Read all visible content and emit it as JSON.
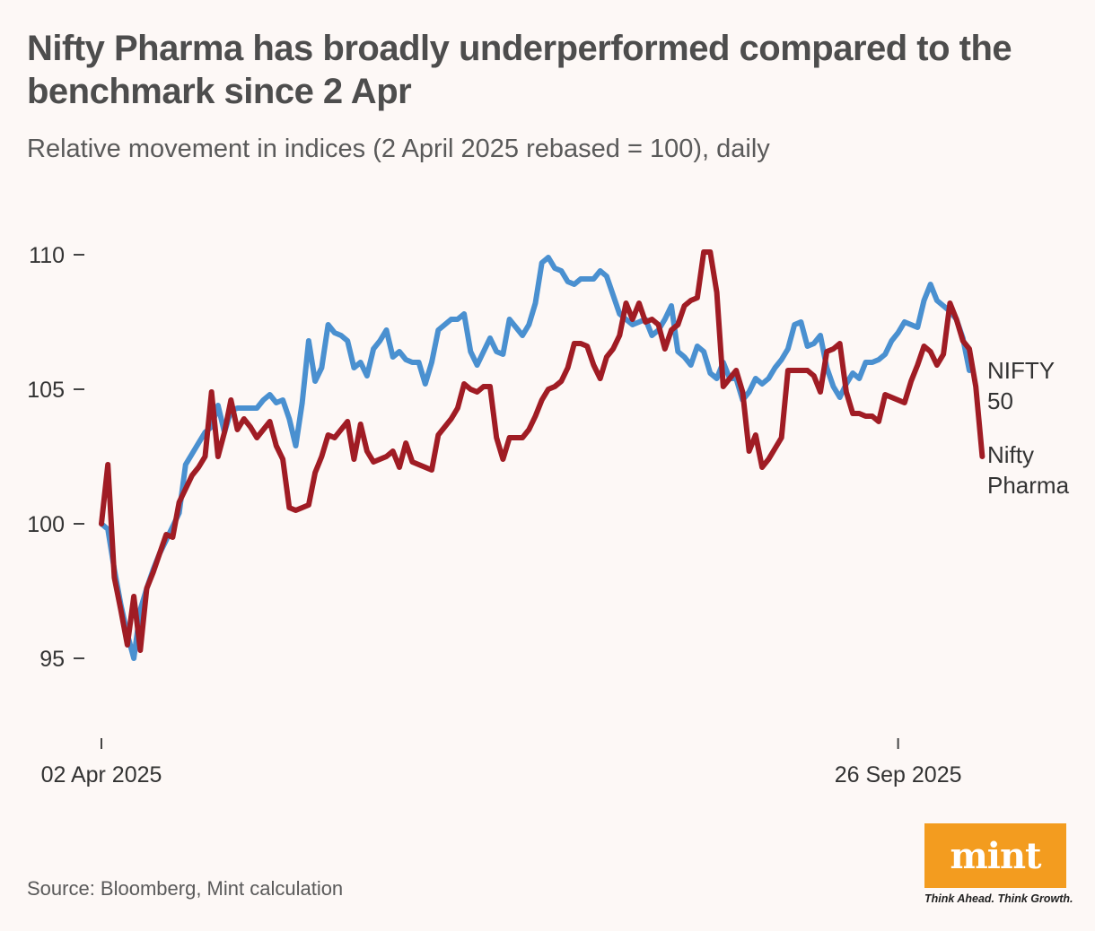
{
  "header": {
    "title": "Nifty Pharma has broadly underperformed compared to the benchmark since 2 Apr",
    "subtitle": "Relative movement in indices (2 April 2025 rebased = 100), daily"
  },
  "footer": {
    "source": "Source: Bloomberg, Mint calculation",
    "logo_text": "mint",
    "tagline": "Think Ahead. Think Growth."
  },
  "colors": {
    "background": "#fdf8f6",
    "nifty50": "#4a90d0",
    "pharma": "#a01c24",
    "logo": "#f39c1f"
  },
  "chart_data": {
    "type": "line",
    "title": "Nifty Pharma has broadly underperformed compared to the benchmark since 2 Apr",
    "subtitle": "Relative movement in indices (2 April 2025 rebased = 100), daily",
    "xlabel": "",
    "ylabel": "",
    "ylim": [
      92.5,
      111
    ],
    "yticks": [
      95,
      100,
      105,
      110
    ],
    "ytick_labels": [
      "95",
      "100",
      "105",
      "110"
    ],
    "xticks": [
      0,
      123
    ],
    "xtick_labels": [
      "02 Apr 2025",
      "26 Sep 2025"
    ],
    "grid": false,
    "legend": "direct labels at line ends (right)",
    "series": [
      {
        "name": "NIFTY 50",
        "label_lines": [
          "NIFTY",
          "50"
        ],
        "color": "#4a90d0",
        "values": [
          100,
          99.8,
          98.3,
          97,
          95.9,
          95,
          96.8,
          97.6,
          98.3,
          98.9,
          99.4,
          99.9,
          100.4,
          102.2,
          102.6,
          103,
          103.4,
          103.6,
          104.4,
          103.4,
          104.2,
          104.3,
          104.3,
          104.3,
          104.3,
          104.6,
          104.8,
          104.5,
          104.6,
          103.9,
          102.9,
          104.5,
          106.8,
          105.3,
          105.8,
          107.4,
          107.1,
          107,
          106.8,
          105.8,
          106,
          105.5,
          106.5,
          106.8,
          107.2,
          106.2,
          106.4,
          106.1,
          106,
          106,
          105.2,
          106,
          107.2,
          107.4,
          107.6,
          107.6,
          107.8,
          106.4,
          105.9,
          106.4,
          106.9,
          106.4,
          106.3,
          107.6,
          107.3,
          107,
          107.4,
          108.2,
          109.7,
          109.9,
          109.5,
          109.4,
          109,
          108.9,
          109.1,
          109.1,
          109.1,
          109.4,
          109.2,
          108.5,
          107.8,
          107.6,
          107.4,
          107.5,
          107.6,
          107,
          107.2,
          107.6,
          108.1,
          106.4,
          106.2,
          105.9,
          106.6,
          106.4,
          105.6,
          105.4,
          106,
          105.4,
          105.4,
          104.6,
          104.9,
          105.4,
          105.2,
          105.4,
          105.8,
          106.1,
          106.5,
          107.4,
          107.5,
          106.6,
          106.7,
          107,
          105.8,
          105.1,
          104.7,
          105.2,
          105.6,
          105.4,
          106,
          106,
          106.1,
          106.3,
          106.8,
          107.1,
          107.5,
          107.4,
          107.3,
          108.3,
          108.9,
          108.3,
          108.1,
          107.9,
          107.6,
          106.9,
          105.7
        ]
      },
      {
        "name": "Nifty Pharma",
        "label_lines": [
          "Nifty",
          "Pharma"
        ],
        "color": "#a01c24",
        "values": [
          100,
          102.2,
          98,
          96.8,
          95.5,
          97.3,
          95.3,
          97.6,
          98.2,
          98.9,
          99.6,
          99.5,
          100.8,
          101.3,
          101.8,
          102.1,
          102.5,
          104.9,
          102.5,
          103.4,
          104.6,
          103.5,
          103.9,
          103.6,
          103.2,
          103.5,
          103.8,
          102.9,
          102.4,
          100.6,
          100.5,
          100.6,
          100.7,
          101.9,
          102.5,
          103.3,
          103.2,
          103.5,
          103.8,
          102.4,
          103.7,
          102.7,
          102.3,
          102.4,
          102.5,
          102.7,
          102.1,
          103,
          102.3,
          102.2,
          102.1,
          102,
          103.3,
          103.6,
          103.9,
          104.3,
          105.2,
          105,
          104.9,
          105.1,
          105.1,
          103.2,
          102.4,
          103.2,
          103.2,
          103.2,
          103.5,
          104,
          104.6,
          105,
          105.1,
          105.3,
          105.8,
          106.7,
          106.7,
          106.6,
          105.9,
          105.4,
          106.2,
          106.5,
          107,
          108.2,
          107.6,
          108.2,
          107.5,
          107.6,
          107.4,
          106.5,
          107.2,
          107.4,
          108.1,
          108.3,
          108.4,
          110.1,
          110.1,
          108.6,
          105.1,
          105.4,
          105.7,
          104.9,
          102.7,
          103.3,
          102.1,
          102.4,
          102.8,
          103.2,
          105.7,
          105.7,
          105.7,
          105.7,
          105.5,
          104.9,
          106.4,
          106.5,
          106.7,
          104.9,
          104.1,
          104.1,
          104,
          104,
          103.8,
          104.8,
          104.7,
          104.6,
          104.5,
          105.3,
          105.9,
          106.6,
          106.4,
          105.9,
          106.3,
          108.2,
          107.6,
          106.8,
          106.5,
          105.1,
          102.5
        ]
      }
    ]
  }
}
